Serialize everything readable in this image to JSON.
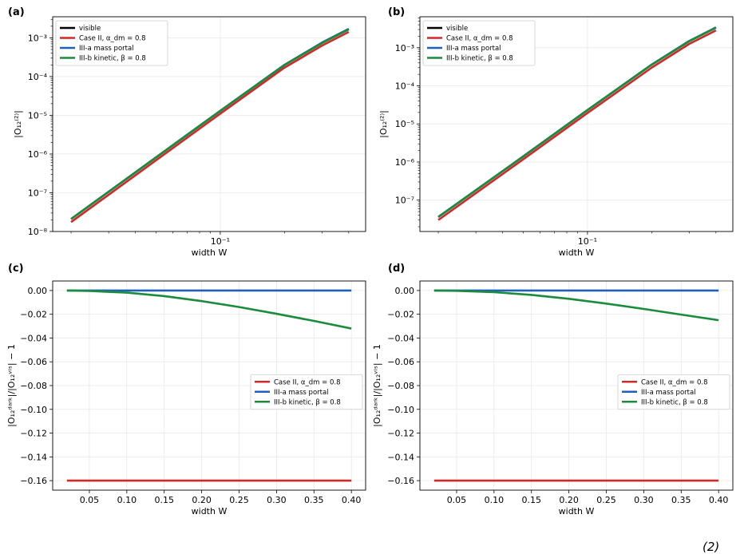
{
  "figure": {
    "footer_text": "(2)"
  },
  "chart_data": [
    {
      "panel": "(a)",
      "type": "line",
      "xlabel": "width W",
      "ylabel": "|O₁₂⁽²⁾|",
      "xscale": "log",
      "yscale": "log",
      "xlim": [
        0.0164,
        0.48
      ],
      "ylim": [
        1e-08,
        0.0035
      ],
      "xticks": [
        {
          "value": 0.1,
          "label": "10⁻¹"
        }
      ],
      "yticks": [
        {
          "value": 1e-08,
          "label": "10⁻⁸"
        },
        {
          "value": 1e-07,
          "label": "10⁻⁷"
        },
        {
          "value": 1e-06,
          "label": "10⁻⁶"
        },
        {
          "value": 1e-05,
          "label": "10⁻⁵"
        },
        {
          "value": 0.0001,
          "label": "10⁻⁴"
        },
        {
          "value": 0.001,
          "label": "10⁻³"
        }
      ],
      "grid": true,
      "legend_position": "top-left",
      "series": [
        {
          "name": "visible",
          "color": "#000000",
          "x": [
            0.02,
            0.05,
            0.1,
            0.2,
            0.3,
            0.4
          ],
          "y": [
            2.1e-08,
            8.2e-07,
            1.3e-05,
            0.0002,
            0.00075,
            0.0017
          ]
        },
        {
          "name": "Case II, α_dm = 0.8",
          "color": "#d62728",
          "x": [
            0.02,
            0.05,
            0.1,
            0.2,
            0.3,
            0.4
          ],
          "y": [
            1.75e-08,
            6.9e-07,
            1.1e-05,
            0.00017,
            0.00063,
            0.00142
          ]
        },
        {
          "name": "III-a mass portal",
          "color": "#1f5fbf",
          "x": [
            0.02,
            0.05,
            0.1,
            0.2,
            0.3,
            0.4
          ],
          "y": [
            2.1e-08,
            8.2e-07,
            1.3e-05,
            0.0002,
            0.00075,
            0.0017
          ]
        },
        {
          "name": "III-b kinetic, β = 0.8",
          "color": "#1a8c3c",
          "x": [
            0.02,
            0.05,
            0.1,
            0.2,
            0.3,
            0.4
          ],
          "y": [
            2.1e-08,
            8.2e-07,
            1.3e-05,
            0.000198,
            0.00073,
            0.00165
          ]
        }
      ]
    },
    {
      "panel": "(b)",
      "type": "line",
      "xlabel": "width W",
      "ylabel": "|O₁₂⁽²⁾|",
      "xscale": "log",
      "yscale": "log",
      "xlim": [
        0.0164,
        0.48
      ],
      "ylim": [
        1.5e-08,
        0.0065
      ],
      "xticks": [
        {
          "value": 0.1,
          "label": "10⁻¹"
        }
      ],
      "yticks": [
        {
          "value": 1e-07,
          "label": "10⁻⁷"
        },
        {
          "value": 1e-06,
          "label": "10⁻⁶"
        },
        {
          "value": 1e-05,
          "label": "10⁻⁵"
        },
        {
          "value": 0.0001,
          "label": "10⁻⁴"
        },
        {
          "value": 0.001,
          "label": "10⁻³"
        }
      ],
      "grid": true,
      "legend_position": "top-left",
      "series": [
        {
          "name": "visible",
          "color": "#000000",
          "x": [
            0.02,
            0.05,
            0.1,
            0.2,
            0.3,
            0.4
          ],
          "y": [
            3.6e-08,
            1.4e-06,
            2.3e-05,
            0.00036,
            0.0015,
            0.0034
          ]
        },
        {
          "name": "Case II, α_dm = 0.8",
          "color": "#d62728",
          "x": [
            0.02,
            0.05,
            0.1,
            0.2,
            0.3,
            0.4
          ],
          "y": [
            3e-08,
            1.18e-06,
            1.93e-05,
            0.0003,
            0.00126,
            0.00285
          ]
        },
        {
          "name": "III-a mass portal",
          "color": "#1f5fbf",
          "x": [
            0.02,
            0.05,
            0.1,
            0.2,
            0.3,
            0.4
          ],
          "y": [
            3.6e-08,
            1.4e-06,
            2.3e-05,
            0.00036,
            0.0015,
            0.0034
          ]
        },
        {
          "name": "III-b kinetic, β = 0.8",
          "color": "#1a8c3c",
          "x": [
            0.02,
            0.05,
            0.1,
            0.2,
            0.3,
            0.4
          ],
          "y": [
            3.6e-08,
            1.4e-06,
            2.3e-05,
            0.000358,
            0.00148,
            0.00335
          ]
        }
      ]
    },
    {
      "panel": "(c)",
      "type": "line",
      "xlabel": "width W",
      "ylabel": "|O₁₂ᵈᵃʳᵏ|/|O₁₂ᵛⁱˢ| − 1",
      "xscale": "linear",
      "yscale": "linear",
      "xlim": [
        0.001,
        0.419
      ],
      "ylim": [
        -0.168,
        0.008
      ],
      "xticks": [
        {
          "value": 0.05,
          "label": "0.05"
        },
        {
          "value": 0.1,
          "label": "0.10"
        },
        {
          "value": 0.15,
          "label": "0.15"
        },
        {
          "value": 0.2,
          "label": "0.20"
        },
        {
          "value": 0.25,
          "label": "0.25"
        },
        {
          "value": 0.3,
          "label": "0.30"
        },
        {
          "value": 0.35,
          "label": "0.35"
        },
        {
          "value": 0.4,
          "label": "0.40"
        }
      ],
      "yticks": [
        {
          "value": 0,
          "label": "0.00"
        },
        {
          "value": -0.02,
          "label": "−0.02"
        },
        {
          "value": -0.04,
          "label": "−0.04"
        },
        {
          "value": -0.06,
          "label": "−0.06"
        },
        {
          "value": -0.08,
          "label": "−0.08"
        },
        {
          "value": -0.1,
          "label": "−0.10"
        },
        {
          "value": -0.12,
          "label": "−0.12"
        },
        {
          "value": -0.14,
          "label": "−0.14"
        },
        {
          "value": -0.16,
          "label": "−0.16"
        }
      ],
      "grid": true,
      "legend_position": "center-right",
      "series": [
        {
          "name": "Case II, α_dm = 0.8",
          "color": "#d62728",
          "x": [
            0.02,
            0.4
          ],
          "y": [
            -0.16,
            -0.16
          ]
        },
        {
          "name": "III-a mass portal",
          "color": "#1f5fbf",
          "x": [
            0.02,
            0.4
          ],
          "y": [
            0.0,
            0.0
          ]
        },
        {
          "name": "III-b kinetic, β = 0.8",
          "color": "#1a8c3c",
          "x": [
            0.02,
            0.05,
            0.1,
            0.15,
            0.2,
            0.25,
            0.3,
            0.35,
            0.4
          ],
          "y": [
            0.0,
            -0.0004,
            -0.0018,
            -0.0047,
            -0.0089,
            -0.0139,
            -0.0196,
            -0.0256,
            -0.032
          ]
        }
      ]
    },
    {
      "panel": "(d)",
      "type": "line",
      "xlabel": "width W",
      "ylabel": "|O₁₂ᵈᵃʳᵏ|/|O₁₂ᵛⁱˢ| − 1",
      "xscale": "linear",
      "yscale": "linear",
      "xlim": [
        0.001,
        0.419
      ],
      "ylim": [
        -0.168,
        0.008
      ],
      "xticks": [
        {
          "value": 0.05,
          "label": "0.05"
        },
        {
          "value": 0.1,
          "label": "0.10"
        },
        {
          "value": 0.15,
          "label": "0.15"
        },
        {
          "value": 0.2,
          "label": "0.20"
        },
        {
          "value": 0.25,
          "label": "0.25"
        },
        {
          "value": 0.3,
          "label": "0.30"
        },
        {
          "value": 0.35,
          "label": "0.35"
        },
        {
          "value": 0.4,
          "label": "0.40"
        }
      ],
      "yticks": [
        {
          "value": 0,
          "label": "0.00"
        },
        {
          "value": -0.02,
          "label": "−0.02"
        },
        {
          "value": -0.04,
          "label": "−0.04"
        },
        {
          "value": -0.06,
          "label": "−0.06"
        },
        {
          "value": -0.08,
          "label": "−0.08"
        },
        {
          "value": -0.1,
          "label": "−0.10"
        },
        {
          "value": -0.12,
          "label": "−0.12"
        },
        {
          "value": -0.14,
          "label": "−0.14"
        },
        {
          "value": -0.16,
          "label": "−0.16"
        }
      ],
      "grid": true,
      "legend_position": "center-right",
      "series": [
        {
          "name": "Case II, α_dm = 0.8",
          "color": "#d62728",
          "x": [
            0.02,
            0.4
          ],
          "y": [
            -0.16,
            -0.16
          ]
        },
        {
          "name": "III-a mass portal",
          "color": "#1f5fbf",
          "x": [
            0.02,
            0.4
          ],
          "y": [
            0.0,
            0.0
          ]
        },
        {
          "name": "III-b kinetic, β = 0.8",
          "color": "#1a8c3c",
          "x": [
            0.02,
            0.05,
            0.1,
            0.15,
            0.2,
            0.25,
            0.3,
            0.35,
            0.4
          ],
          "y": [
            0.0,
            -0.0003,
            -0.0014,
            -0.0037,
            -0.007,
            -0.011,
            -0.0155,
            -0.0203,
            -0.025
          ]
        }
      ]
    }
  ]
}
